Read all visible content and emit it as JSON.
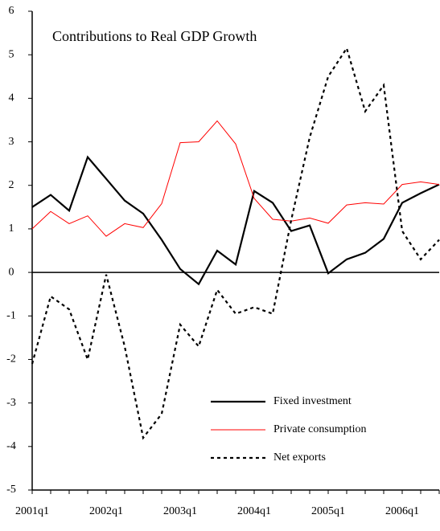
{
  "chart_data": {
    "type": "line",
    "title": "Contributions to Real GDP Growth",
    "categories": [
      "2001q1",
      null,
      null,
      null,
      "2002q1",
      null,
      null,
      null,
      "2003q1",
      null,
      null,
      null,
      "2004q1",
      null,
      null,
      null,
      "2005q1",
      null,
      null,
      null,
      "2006q1",
      null,
      null
    ],
    "series": [
      {
        "name": "Fixed investment",
        "color": "#000000",
        "linestyle": "solid",
        "width": 2.2,
        "values": [
          1.5,
          1.78,
          1.42,
          2.65,
          2.15,
          1.65,
          1.35,
          0.75,
          0.08,
          -0.27,
          0.5,
          0.18,
          1.87,
          1.6,
          0.95,
          1.08,
          -0.02,
          0.3,
          0.45,
          0.77,
          1.6,
          1.82,
          2.02
        ]
      },
      {
        "name": "Private consumption",
        "color": "#ff0000",
        "linestyle": "solid",
        "width": 1,
        "values": [
          1.0,
          1.4,
          1.12,
          1.3,
          0.83,
          1.12,
          1.03,
          1.58,
          2.98,
          3.0,
          3.48,
          2.95,
          1.7,
          1.22,
          1.18,
          1.25,
          1.13,
          1.55,
          1.6,
          1.57,
          2.02,
          2.08,
          2.02
        ]
      },
      {
        "name": "Net exports",
        "color": "#000000",
        "linestyle": "dotted",
        "width": 2.2,
        "values": [
          -2.1,
          -0.55,
          -0.85,
          -2.0,
          -0.05,
          -1.7,
          -3.8,
          -3.25,
          -1.2,
          -1.7,
          -0.4,
          -0.95,
          -0.8,
          -0.95,
          1.2,
          3.1,
          4.5,
          5.15,
          3.7,
          4.3,
          0.95,
          0.3,
          0.75
        ]
      }
    ],
    "ylim": [
      -5,
      6
    ],
    "yticks": [
      -5,
      -4,
      -3,
      -2,
      -1,
      0,
      1,
      2,
      3,
      4,
      5,
      6
    ],
    "legend": "lower right"
  }
}
